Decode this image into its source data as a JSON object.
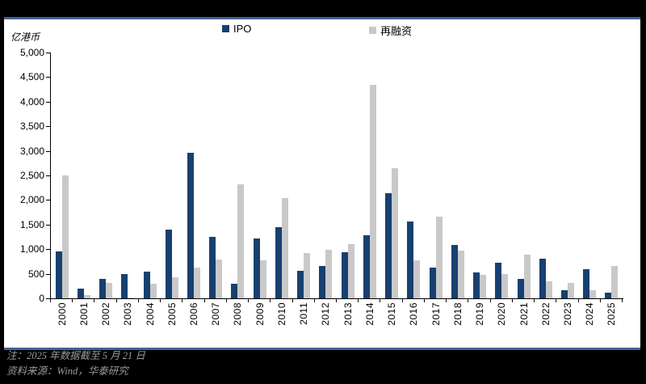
{
  "panel": {
    "unit_label": "亿港币"
  },
  "legend": {
    "ipo_label": "IPO",
    "refi_label": "再融资"
  },
  "colors": {
    "ipo_bar": "#174070",
    "refi_bar": "#C9C9C9",
    "panel_border": "#41639a",
    "background": "#000000",
    "panel_background": "#ffffff",
    "footnote_text": "#9b9b9b",
    "axis": "#000000"
  },
  "footnotes": {
    "note": "注：2025 年数据截至 5 月 21 日",
    "source": "资料来源：Wind，华泰研究"
  },
  "chart_data": {
    "type": "bar",
    "title": "",
    "ylabel": "亿港币",
    "xlabel": "",
    "ylim": [
      0,
      5000
    ],
    "ytick_step": 500,
    "grid": false,
    "legend_position": "top",
    "categories": [
      "2000",
      "2001",
      "2002",
      "2003",
      "2004",
      "2005",
      "2006",
      "2007",
      "2008",
      "2009",
      "2010",
      "2011",
      "2012",
      "2013",
      "2014",
      "2015",
      "2016",
      "2017",
      "2018",
      "2019",
      "2020",
      "2021",
      "2022",
      "2023",
      "2024",
      "2025"
    ],
    "series": [
      {
        "name": "IPO",
        "color": "#174070",
        "values": [
          950,
          190,
          390,
          500,
          540,
          1400,
          2960,
          1250,
          290,
          1220,
          1450,
          560,
          650,
          940,
          1280,
          2130,
          1570,
          620,
          1090,
          530,
          730,
          400,
          810,
          160,
          590,
          110
        ]
      },
      {
        "name": "再融资",
        "color": "#C9C9C9",
        "values": [
          2500,
          70,
          310,
          20,
          300,
          420,
          620,
          790,
          2320,
          780,
          2040,
          920,
          980,
          1100,
          4340,
          2640,
          770,
          1660,
          970,
          480,
          500,
          880,
          340,
          320,
          160,
          660
        ]
      }
    ]
  }
}
